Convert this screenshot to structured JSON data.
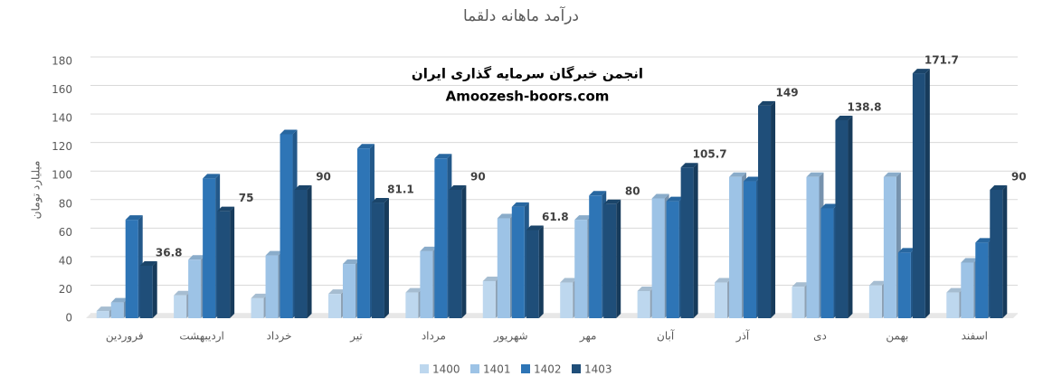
{
  "chart_data": {
    "type": "bar",
    "title": "درآمد ماهانه دلقما",
    "y_label": "میلیارد تومان",
    "annotations": [
      "انجمن خبرگان سرمایه گذاری ایران",
      "Amoozesh-boors.com"
    ],
    "categories": [
      "فروردین",
      "اردیبهشت",
      "خرداد",
      "تیر",
      "مرداد",
      "شهریور",
      "مهر",
      "آبان",
      "آذر",
      "دی",
      "بهمن",
      "اسفند"
    ],
    "series": [
      {
        "name": "1400",
        "color": "#bdd7ee",
        "values": [
          5,
          16,
          14,
          17,
          18,
          26,
          25,
          19,
          25,
          22,
          23,
          18
        ]
      },
      {
        "name": "1401",
        "color": "#9dc3e6",
        "values": [
          11,
          41,
          44,
          38,
          47,
          70,
          69,
          84,
          99,
          99,
          99,
          39
        ]
      },
      {
        "name": "1402",
        "color": "#2e75b6",
        "values": [
          69,
          98,
          129,
          119,
          112,
          78,
          86,
          82,
          96,
          77,
          46,
          53
        ]
      },
      {
        "name": "1403",
        "color": "#1f4e79",
        "values": [
          36.8,
          75,
          90,
          81.1,
          90,
          61.8,
          80,
          105.7,
          149,
          138.8,
          171.7,
          90
        ],
        "data_labels": true
      }
    ],
    "ylim": [
      0,
      180
    ],
    "yticks": [
      0,
      20,
      40,
      60,
      80,
      100,
      120,
      140,
      160,
      180
    ],
    "grid": true
  }
}
